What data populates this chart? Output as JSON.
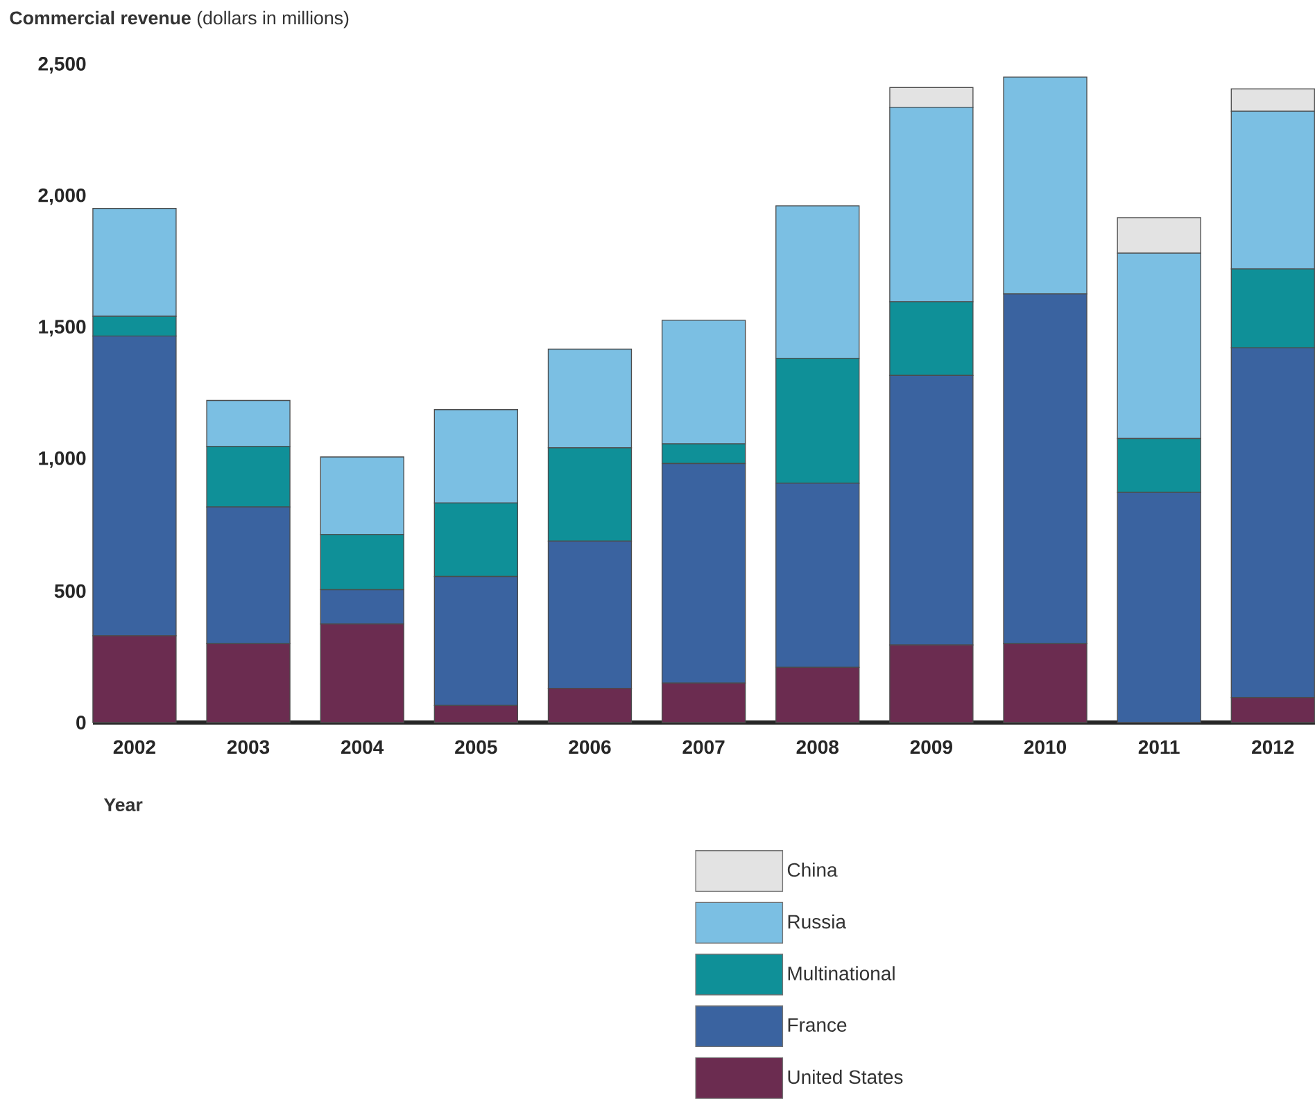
{
  "chart_data": {
    "type": "bar",
    "stacked": true,
    "ylabel": "**Commercial revenue** (dollars in millions)",
    "xlabel": "Year",
    "categories": [
      "2002",
      "2003",
      "2004",
      "2005",
      "2006",
      "2007",
      "2008",
      "2009",
      "2010",
      "2011",
      "2012"
    ],
    "ylim": [
      0,
      2500
    ],
    "yticks": [
      0,
      500,
      {
        "value": 1000,
        "label": "1,000"
      },
      {
        "value": 1500,
        "label": "1,500"
      },
      {
        "value": 2000,
        "label": "2,000"
      },
      {
        "value": 2500,
        "label": "2,500"
      }
    ],
    "grid": false,
    "legend": "bottom",
    "series": [
      {
        "name": "United States",
        "color": "#6b2c50",
        "values": [
          330,
          300,
          375,
          65,
          130,
          150,
          210,
          295,
          300,
          0,
          95
        ]
      },
      {
        "name": "France",
        "color": "#3a63a0",
        "values": [
          1140,
          520,
          130,
          490,
          560,
          835,
          700,
          1025,
          1330,
          875,
          1330
        ]
      },
      {
        "name": "Multinational",
        "color": "#0f9098",
        "values": [
          75,
          230,
          210,
          280,
          355,
          75,
          475,
          280,
          0,
          205,
          300
        ]
      },
      {
        "name": "Russia",
        "color": "#7bbfe3",
        "values": [
          410,
          175,
          295,
          355,
          375,
          470,
          580,
          740,
          825,
          705,
          600
        ]
      },
      {
        "name": "China",
        "color": "#e3e3e3",
        "values": [
          null,
          null,
          null,
          null,
          null,
          null,
          null,
          75,
          null,
          135,
          85
        ]
      }
    ]
  }
}
